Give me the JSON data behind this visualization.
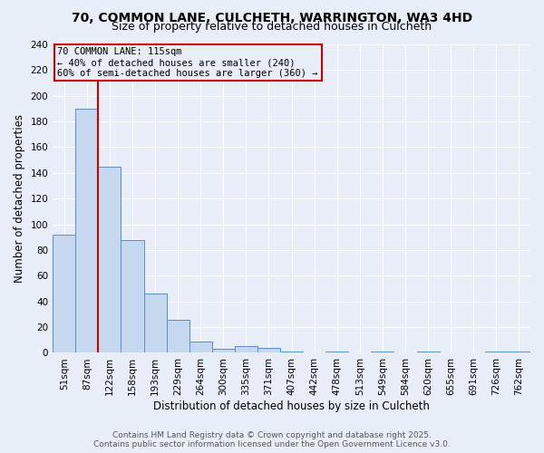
{
  "title": "70, COMMON LANE, CULCHETH, WARRINGTON, WA3 4HD",
  "subtitle": "Size of property relative to detached houses in Culcheth",
  "xlabel": "Distribution of detached houses by size in Culcheth",
  "ylabel": "Number of detached properties",
  "categories": [
    "51sqm",
    "87sqm",
    "122sqm",
    "158sqm",
    "193sqm",
    "229sqm",
    "264sqm",
    "300sqm",
    "335sqm",
    "371sqm",
    "407sqm",
    "442sqm",
    "478sqm",
    "513sqm",
    "549sqm",
    "584sqm",
    "620sqm",
    "655sqm",
    "691sqm",
    "726sqm",
    "762sqm"
  ],
  "values": [
    92,
    190,
    145,
    88,
    46,
    26,
    9,
    3,
    5,
    4,
    1,
    0,
    1,
    0,
    1,
    0,
    1,
    0,
    0,
    1,
    1
  ],
  "bar_color": "#c5d8f0",
  "bar_edge_color": "#5b8dc8",
  "marker_index": 1,
  "marker_color": "#cc0000",
  "annotation_text": "70 COMMON LANE: 115sqm\n← 40% of detached houses are smaller (240)\n60% of semi-detached houses are larger (360) →",
  "annotation_box_color": "#cc0000",
  "background_color": "#e8eef8",
  "grid_color": "#ffffff",
  "ylim": [
    0,
    240
  ],
  "yticks": [
    0,
    20,
    40,
    60,
    80,
    100,
    120,
    140,
    160,
    180,
    200,
    220,
    240
  ],
  "footer_line1": "Contains HM Land Registry data © Crown copyright and database right 2025.",
  "footer_line2": "Contains public sector information licensed under the Open Government Licence v3.0.",
  "title_fontsize": 10,
  "subtitle_fontsize": 9,
  "axis_label_fontsize": 8.5,
  "tick_fontsize": 7.5,
  "annotation_fontsize": 7.5,
  "footer_fontsize": 6.5,
  "bar_width": 1.0
}
